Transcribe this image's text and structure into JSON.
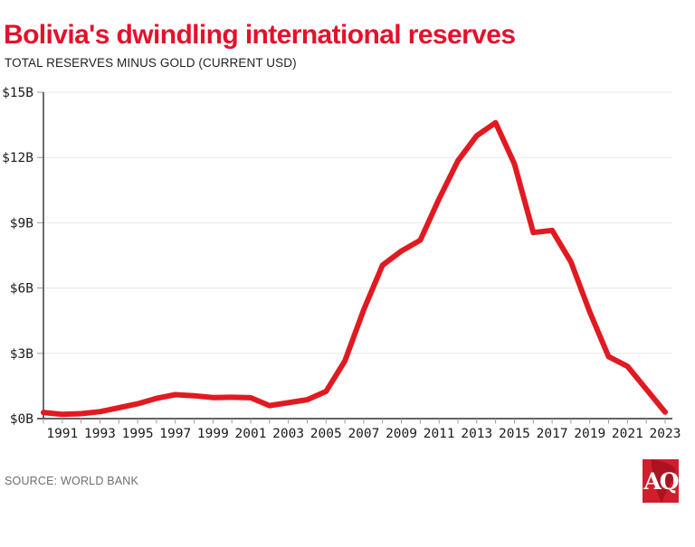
{
  "header": {
    "title": "Bolivia's dwindling international reserves",
    "subtitle": "TOTAL RESERVES MINUS GOLD (CURRENT USD)"
  },
  "footer": {
    "source": "SOURCE: WORLD BANK",
    "logo_text": "AQ"
  },
  "colors": {
    "title_red": "#e4112c",
    "line_red": "#e11a21",
    "grid": "#e7e7e7",
    "axis": "#303030",
    "tick": "#9b9b9b",
    "label": "#1c1c1c",
    "subtitle": "#1f1f1f",
    "source": "#6f6f6f",
    "logo_background": "#ce1f2d",
    "logo_map": "#a8121f"
  },
  "chart_data": {
    "type": "line",
    "title": "Bolivia's dwindling international reserves",
    "subtitle": "TOTAL RESERVES MINUS GOLD (CURRENT USD)",
    "series_name": "Total reserves minus gold (current USD, billions)",
    "x": [
      1990,
      1991,
      1992,
      1993,
      1994,
      1995,
      1996,
      1997,
      1998,
      1999,
      2000,
      2001,
      2002,
      2003,
      2004,
      2005,
      2006,
      2007,
      2008,
      2009,
      2010,
      2011,
      2012,
      2013,
      2014,
      2015,
      2016,
      2017,
      2018,
      2019,
      2020,
      2021,
      2022,
      2023
    ],
    "values": [
      0.28,
      0.2,
      0.23,
      0.32,
      0.5,
      0.68,
      0.93,
      1.1,
      1.05,
      0.97,
      0.98,
      0.96,
      0.6,
      0.73,
      0.87,
      1.25,
      2.65,
      5.0,
      7.05,
      7.7,
      8.2,
      10.1,
      11.85,
      13.0,
      13.6,
      11.7,
      8.55,
      8.65,
      7.2,
      4.9,
      2.85,
      2.4,
      1.35,
      0.3
    ],
    "ylim": [
      0,
      15
    ],
    "ytick_step": 3,
    "ytick_labels": [
      "$0B",
      "$3B",
      "$6B",
      "$9B",
      "$12B",
      "$15B"
    ],
    "xtick_labels": [
      "1991",
      "1993",
      "1995",
      "1997",
      "1999",
      "2001",
      "2003",
      "2005",
      "2007",
      "2009",
      "2011",
      "2013",
      "2015",
      "2017",
      "2019",
      "2021",
      "2023"
    ],
    "grid": "horizontal",
    "legend": "none",
    "line_color": "#e11a21"
  }
}
